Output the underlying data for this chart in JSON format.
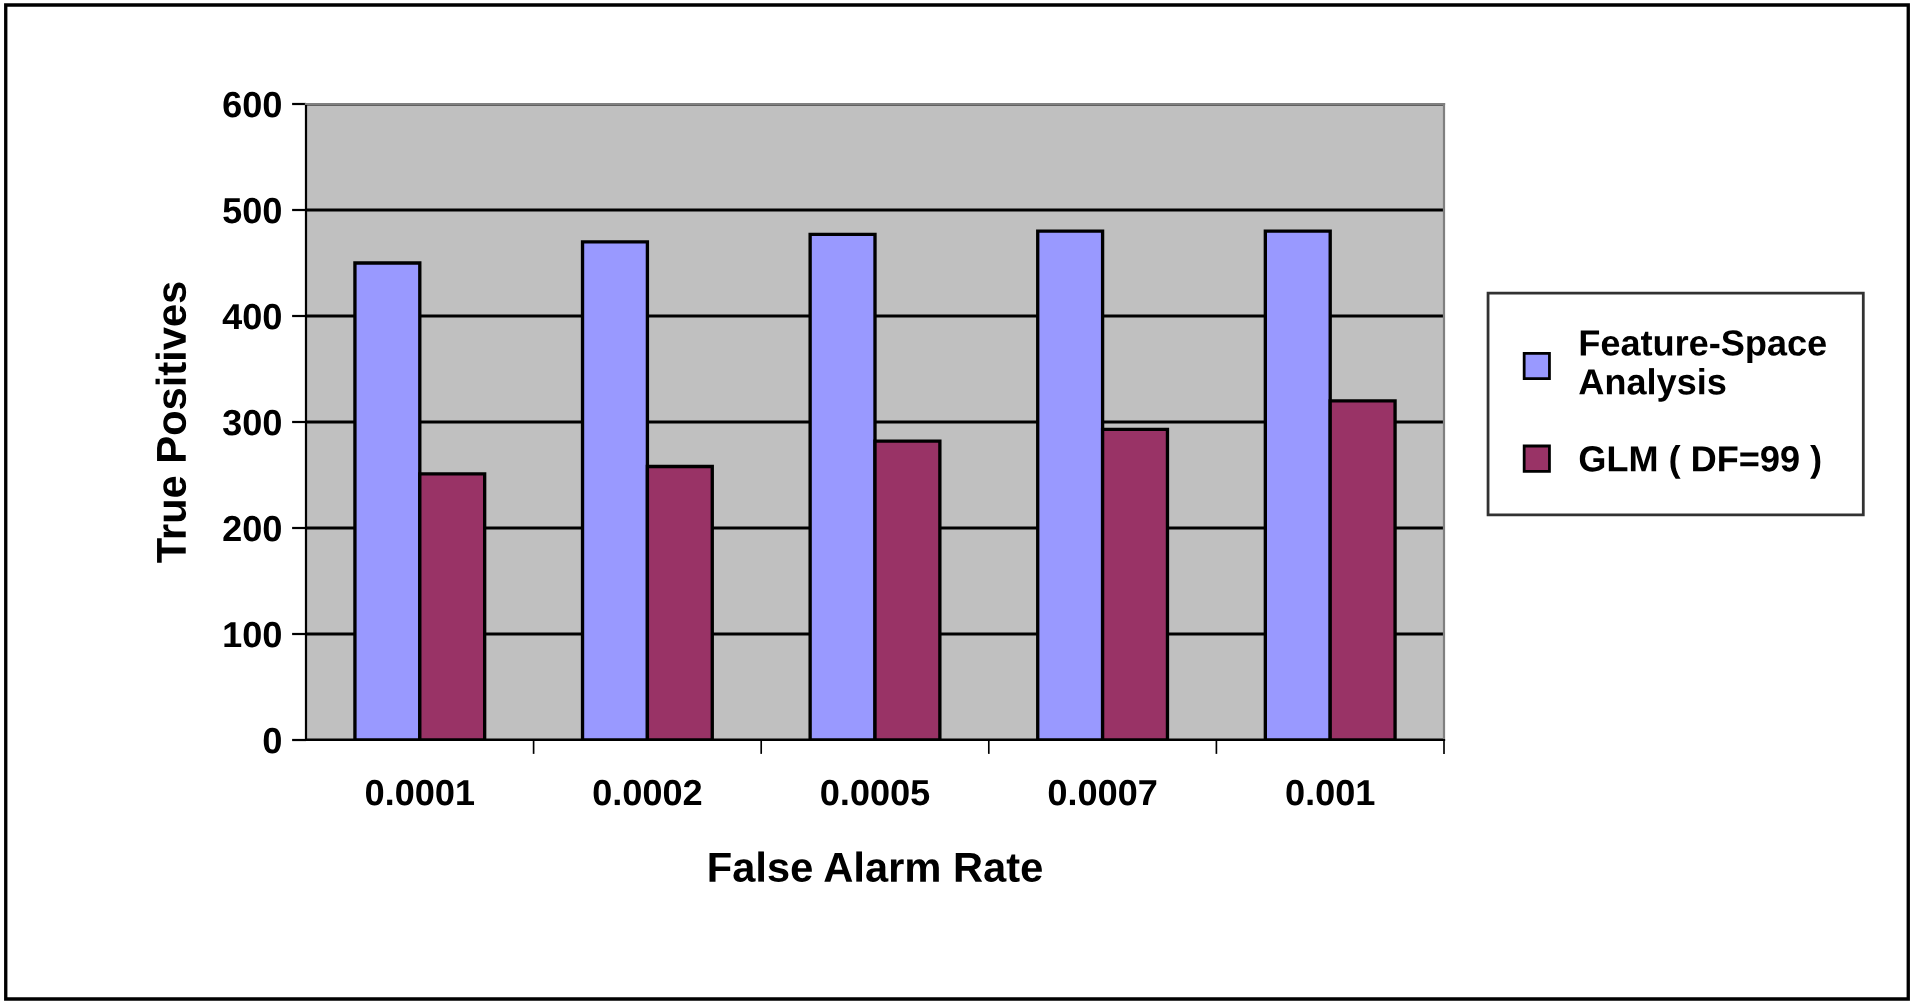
{
  "chart_data": {
    "type": "bar",
    "xlabel": "False Alarm Rate",
    "ylabel": "True Positives",
    "categories": [
      "0.0001",
      "0.0002",
      "0.0005",
      "0.0007",
      "0.001"
    ],
    "series": [
      {
        "name": "Feature-Space\nAnalysis",
        "color": "#9999ff",
        "values": [
          450,
          470,
          477,
          480,
          480
        ]
      },
      {
        "name": "GLM ( DF=99 )",
        "color": "#993366",
        "values": [
          251,
          258,
          282,
          293,
          320
        ]
      }
    ],
    "ylim": [
      0,
      600
    ],
    "yticks": [
      0,
      100,
      200,
      300,
      400,
      500,
      600
    ],
    "grid": "y",
    "legend": "right"
  }
}
